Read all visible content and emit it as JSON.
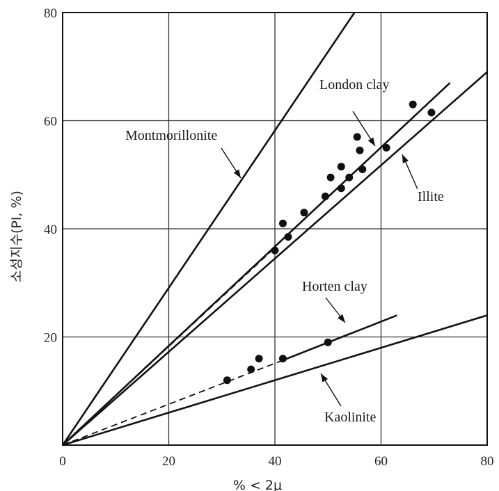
{
  "chart_data": {
    "type": "scatter",
    "title": "",
    "xlabel": "% < 2μ",
    "ylabel": "소성지수(PI, %)",
    "xlim": [
      0,
      80
    ],
    "ylim": [
      0,
      80
    ],
    "xticks": [
      "0",
      "20",
      "40",
      "60",
      "80"
    ],
    "yticks": [
      "20",
      "40",
      "60",
      "80"
    ],
    "grid": true,
    "lines": [
      {
        "name": "Montmorillonite",
        "points": [
          [
            0,
            0
          ],
          [
            55,
            80
          ]
        ]
      },
      {
        "name": "London clay",
        "points": [
          [
            0,
            0
          ],
          [
            73,
            67
          ]
        ]
      },
      {
        "name": "Illite",
        "points": [
          [
            0,
            0
          ],
          [
            80,
            69
          ]
        ]
      },
      {
        "name": "Horten clay",
        "points": [
          [
            41,
            15.5
          ],
          [
            63,
            24
          ]
        ]
      },
      {
        "name": "Kaolinite",
        "points": [
          [
            0,
            0
          ],
          [
            80,
            24
          ]
        ]
      }
    ],
    "dashed_extensions": [
      {
        "points": [
          [
            0,
            0
          ],
          [
            40,
            36.5
          ]
        ]
      },
      {
        "points": [
          [
            0,
            0
          ],
          [
            41,
            15.5
          ]
        ]
      }
    ],
    "series": [
      {
        "name": "London clay",
        "points": [
          [
            40,
            36
          ],
          [
            41.5,
            41
          ],
          [
            42.5,
            38.5
          ],
          [
            45.5,
            43
          ],
          [
            49.5,
            46
          ],
          [
            50.5,
            49.5
          ],
          [
            52.5,
            51.5
          ],
          [
            52.5,
            47.5
          ],
          [
            54,
            49.5
          ],
          [
            55.5,
            57
          ],
          [
            56,
            54.5
          ],
          [
            56.5,
            51
          ],
          [
            61,
            55
          ],
          [
            66,
            63
          ],
          [
            69.5,
            61.5
          ]
        ]
      },
      {
        "name": "Horten clay",
        "points": [
          [
            31,
            12
          ],
          [
            35.5,
            14
          ],
          [
            37,
            16
          ],
          [
            41.5,
            16
          ],
          [
            50,
            19
          ]
        ]
      }
    ],
    "annotations": [
      "Montmorillonite",
      "London clay",
      "Illite",
      "Horten clay",
      "Kaolinite"
    ]
  }
}
